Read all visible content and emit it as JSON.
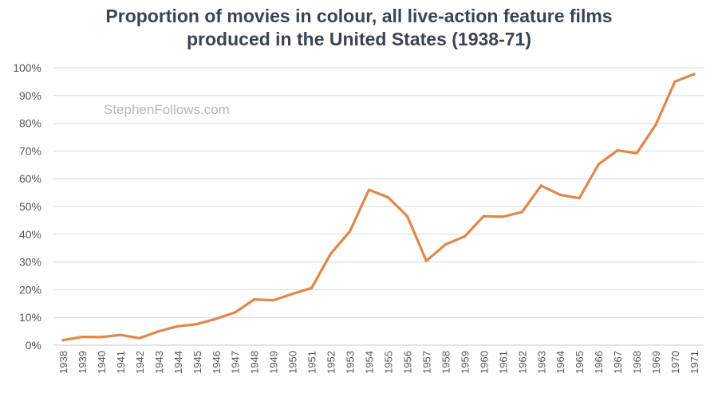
{
  "chart_data": {
    "type": "line",
    "title": "Proportion of movies in colour, all live-action feature films produced in the United States (1938-71)",
    "title_lines": [
      "Proportion of movies in colour, all live-action feature films",
      "produced in the United States (1938-71)"
    ],
    "watermark": "StephenFollows.com",
    "xlabel": "",
    "ylabel": "",
    "ylim": [
      0,
      100
    ],
    "y_tick_labels": [
      "0%",
      "10%",
      "20%",
      "30%",
      "40%",
      "50%",
      "60%",
      "70%",
      "80%",
      "90%",
      "100%"
    ],
    "grid": true,
    "legend": "none",
    "line_color": "#e0874a",
    "categories": [
      "1938",
      "1939",
      "1940",
      "1941",
      "1942",
      "1943",
      "1944",
      "1945",
      "1946",
      "1947",
      "1948",
      "1949",
      "1950",
      "1951",
      "1952",
      "1953",
      "1954",
      "1955",
      "1956",
      "1957",
      "1958",
      "1959",
      "1960",
      "1961",
      "1962",
      "1963",
      "1964",
      "1965",
      "1966",
      "1967",
      "1968",
      "1969",
      "1970",
      "1971"
    ],
    "values": [
      1.8,
      3.0,
      2.9,
      3.7,
      2.5,
      5.0,
      6.8,
      7.6,
      9.5,
      11.8,
      16.5,
      16.2,
      18.5,
      20.6,
      33.0,
      41.0,
      56.0,
      53.3,
      46.5,
      30.4,
      36.3,
      39.2,
      46.5,
      46.3,
      48.0,
      57.5,
      54.2,
      53.0,
      65.2,
      70.2,
      69.2,
      79.5,
      95.0,
      97.7
    ]
  }
}
